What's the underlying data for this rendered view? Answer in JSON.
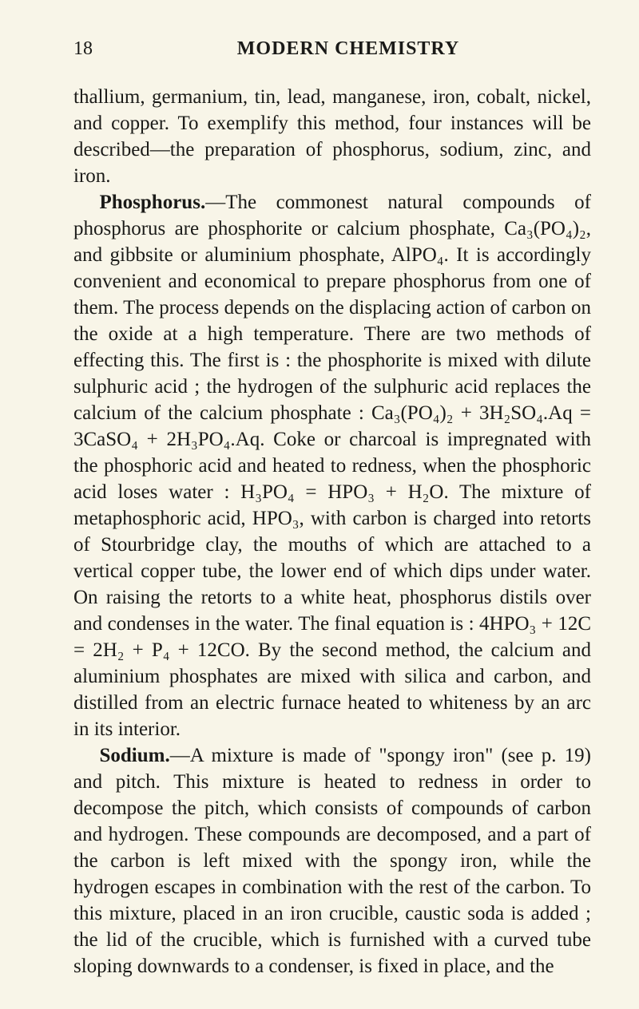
{
  "header": {
    "page_number": "18",
    "running_title": "MODERN CHEMISTRY"
  },
  "paragraphs": {
    "p1": "thallium, germanium, tin, lead, manganese, iron, cobalt, nickel, and copper. To exemplify this method, four instances will be described—the preparation of phosphorus, sodium, zinc, and iron.",
    "p2_lead": "Phosphorus.",
    "p2": "—The commonest natural compounds of phosphorus are phosphorite or calcium phosphate, Ca₃(PO₄)₂, and gibbsite or aluminium phosphate, AlPO₄. It is accordingly convenient and economical to prepare phosphorus from one of them. The process depends on the displacing action of carbon on the oxide at a high temperature. There are two methods of effecting this. The first is : the phosphorite is mixed with dilute sulphuric acid ; the hydrogen of the sulphuric acid replaces the cal­cium of the calcium phosphate : Ca₃(PO₄)₂ + 3H₂SO₄.Aq = 3CaSO₄ + 2H₃PO₄.Aq. Coke or charcoal is impreg­nated with the phosphoric acid and heated to redness, when the phosphoric acid loses water : H₃PO₄ = HPO₃ + H₂O. The mixture of metaphosphoric acid, HPO₃, with carbon is charged into retorts of Stourbridge clay, the mouths of which are attached to a vertical copper tube, the lower end of which dips under water. On raising the retorts to a white heat, phosphorus distils over and condenses in the water. The final equation is : 4HPO₃ + 12C = 2H₂ + P₄ + 12CO. By the second method, the calcium and alumi­nium phosphates are mixed with silica and carbon, and distilled from an electric furnace heated to whiteness by an arc in its interior.",
    "p3_lead": "Sodium.",
    "p3": "—A mixture is made of \"spongy iron\" (see p. 19) and pitch. This mixture is heated to redness in order to decompose the pitch, which consists of compounds of carbon and hydrogen. These compounds are decom­posed, and a part of the carbon is left mixed with the spongy iron, while the hydrogen escapes in combination with the rest of the carbon. To this mixture, placed in an iron crucible, caustic soda is added ; the lid of the crucible, which is furnished with a curved tube sloping downwards to a condenser, is fixed in place, and the"
  }
}
